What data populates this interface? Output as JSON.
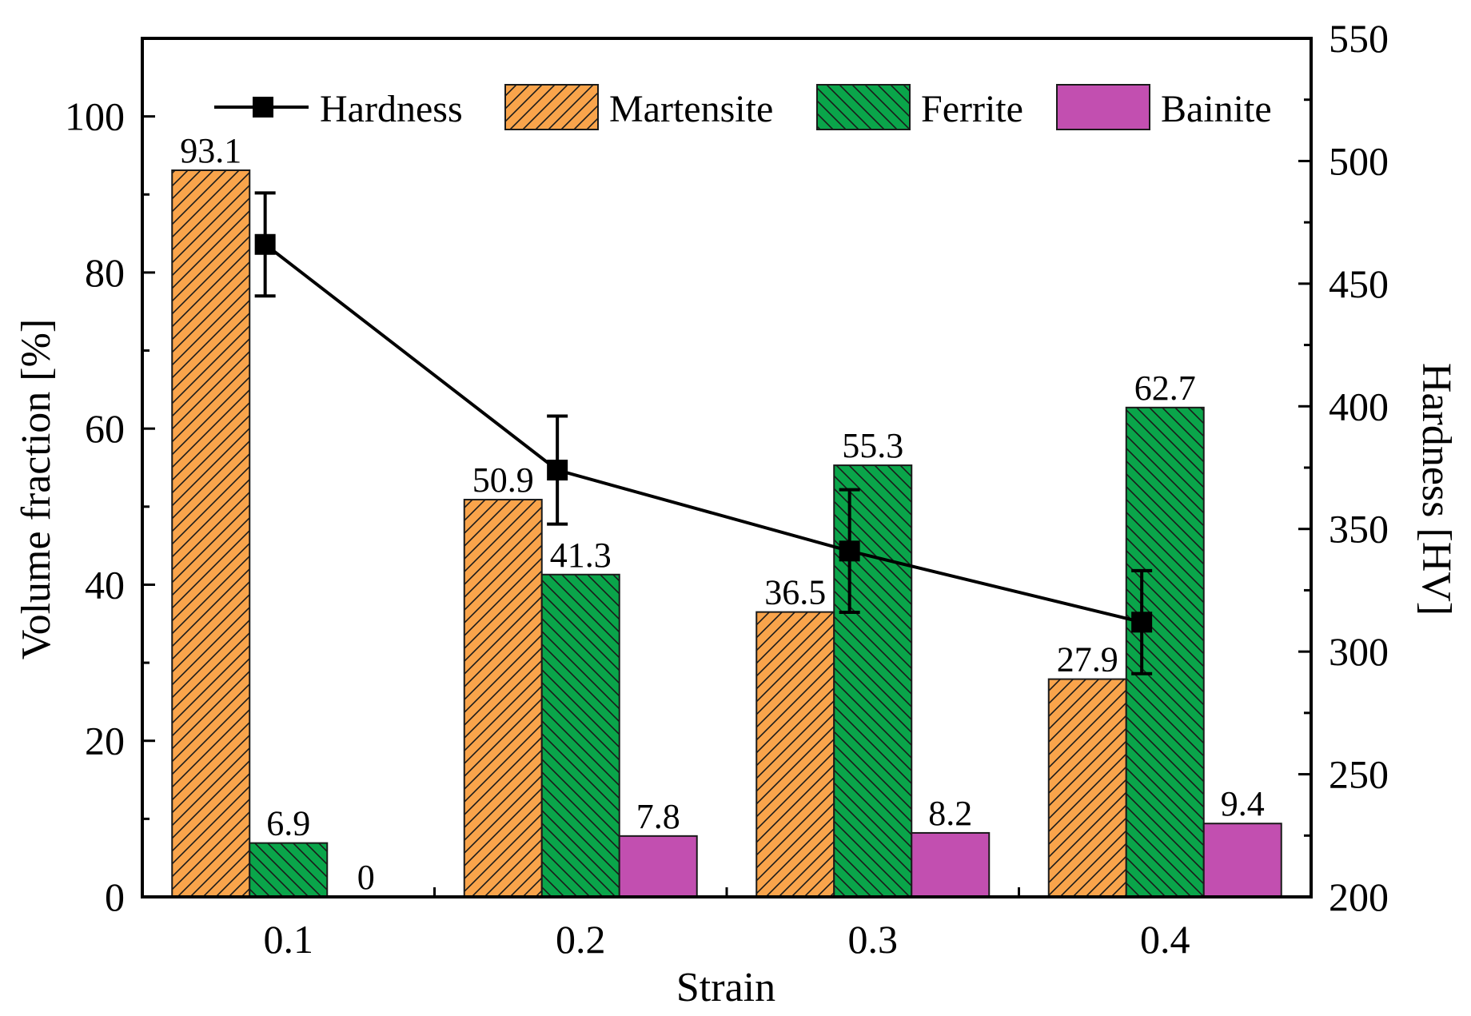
{
  "chart_data": {
    "type": "bar",
    "categories": [
      "0.1",
      "0.2",
      "0.3",
      "0.4"
    ],
    "xlabel": "Strain",
    "ylabel": "Volume fraction [%]",
    "y2label": "Hardness [HV]",
    "ylim": [
      0,
      110
    ],
    "y2lim": [
      200,
      550
    ],
    "yticks": [
      0,
      20,
      40,
      60,
      80,
      100
    ],
    "y2ticks": [
      200,
      250,
      300,
      350,
      400,
      450,
      500,
      550
    ],
    "series": [
      {
        "name": "Martensite",
        "values": [
          93.1,
          50.9,
          36.5,
          27.9
        ],
        "color": "#f9a44b",
        "pattern": "hatch-forward"
      },
      {
        "name": "Ferrite",
        "values": [
          6.9,
          41.3,
          55.3,
          62.7
        ],
        "color": "#0aa54a",
        "pattern": "hatch-backward"
      },
      {
        "name": "Bainite",
        "values": [
          0,
          7.8,
          8.2,
          9.4
        ],
        "color": "#c24fb0",
        "pattern": "solid"
      }
    ],
    "value_labels": [
      [
        "93.1",
        "50.9",
        "36.5",
        "27.9"
      ],
      [
        "6.9",
        "41.3",
        "55.3",
        "62.7"
      ],
      [
        "0",
        "7.8",
        "8.2",
        "9.4"
      ]
    ],
    "line_series": {
      "name": "Hardness",
      "axis": "right",
      "values": [
        466,
        374,
        341,
        312
      ],
      "error": [
        21,
        22,
        25,
        21
      ],
      "color": "#000000",
      "marker": "square"
    },
    "legend": {
      "placement": "top",
      "entries": [
        "Hardness",
        "Martensite",
        "Ferrite",
        "Bainite"
      ]
    }
  }
}
